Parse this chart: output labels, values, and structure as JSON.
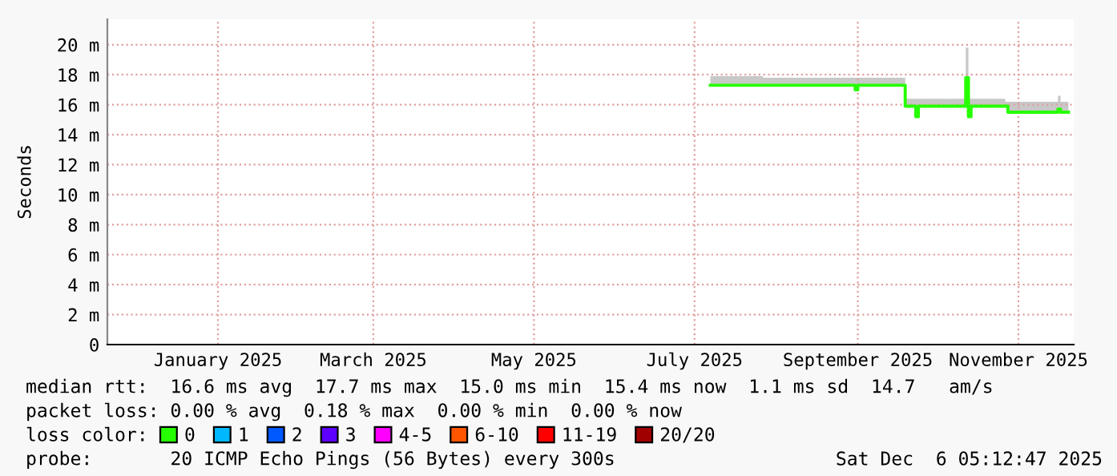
{
  "chart_data": {
    "type": "line",
    "ylabel": "Seconds",
    "xlim": [
      "2024-12-04",
      "2025-12-06"
    ],
    "xticks": [
      {
        "value": "2025-01-15",
        "label": "January 2025"
      },
      {
        "value": "2025-03-15",
        "label": "March 2025"
      },
      {
        "value": "2025-05-15",
        "label": "May 2025"
      },
      {
        "value": "2025-07-15",
        "label": "July 2025"
      },
      {
        "value": "2025-09-15",
        "label": "September 2025"
      },
      {
        "value": "2025-11-15",
        "label": "November 2025"
      }
    ],
    "ylim": [
      0,
      21.7
    ],
    "yticks": [
      {
        "value": 0,
        "label": "0"
      },
      {
        "value": 2,
        "label": "2 m"
      },
      {
        "value": 4,
        "label": "4 m"
      },
      {
        "value": 6,
        "label": "6 m"
      },
      {
        "value": 8,
        "label": "8 m"
      },
      {
        "value": 10,
        "label": "10 m"
      },
      {
        "value": 12,
        "label": "12 m"
      },
      {
        "value": 14,
        "label": "14 m"
      },
      {
        "value": 16,
        "label": "16 m"
      },
      {
        "value": 18,
        "label": "18 m"
      },
      {
        "value": 20,
        "label": "20 m"
      }
    ],
    "grid": true,
    "legend": "bottom",
    "marker": "none",
    "line_style": "solid",
    "series": [
      {
        "name": "0",
        "color": "#26ff00",
        "x": [
          "2025-07-21",
          "2025-08-10",
          "2025-09-13",
          "2025-09-14",
          "2025-09-15",
          "2025-10-02",
          "2025-10-03",
          "2025-10-06",
          "2025-10-07",
          "2025-10-08",
          "2025-10-25",
          "2025-10-26",
          "2025-10-27",
          "2025-10-28",
          "2025-11-10",
          "2025-11-11",
          "2025-11-29",
          "2025-11-30",
          "2025-12-01",
          "2025-12-04"
        ],
        "values": [
          17.3,
          17.3,
          17.3,
          17.0,
          17.3,
          17.3,
          15.9,
          15.9,
          15.2,
          15.9,
          15.9,
          17.8,
          15.2,
          15.9,
          15.9,
          15.5,
          15.5,
          15.7,
          15.5,
          15.5
        ],
        "lower": [
          17.3,
          17.3,
          17.3,
          17.0,
          17.3,
          17.3,
          15.9,
          15.9,
          15.2,
          15.9,
          15.9,
          15.9,
          15.2,
          15.9,
          15.9,
          15.5,
          15.5,
          15.5,
          15.5,
          15.5
        ],
        "upper": [
          17.9,
          17.8,
          17.8,
          17.8,
          17.8,
          17.8,
          16.4,
          16.4,
          16.4,
          16.4,
          16.4,
          19.8,
          16.4,
          16.4,
          16.2,
          16.2,
          16.2,
          16.6,
          16.2,
          16.2
        ]
      },
      {
        "name": "1",
        "color": "#00b8ff"
      },
      {
        "name": "2",
        "color": "#0059ff"
      },
      {
        "name": "3",
        "color": "#5e00ff"
      },
      {
        "name": "4-5",
        "color": "#ff00ff"
      },
      {
        "name": "6-10",
        "color": "#ff5500"
      },
      {
        "name": "11-19",
        "color": "#ff0000"
      },
      {
        "name": "20/20",
        "color": "#a10000"
      }
    ],
    "annotations": [
      "median rtt:  16.6 ms avg  17.7 ms max  15.0 ms min  15.4 ms now  1.1 ms sd  14.7   am/s",
      "packet loss: 0.00 % avg  0.18 % max  0.00 % min  0.00 % now",
      "loss color:",
      "probe:       20 ICMP Echo Pings (56 Bytes) every 300s",
      "Sat Dec  6 05:12:47 2025"
    ]
  }
}
